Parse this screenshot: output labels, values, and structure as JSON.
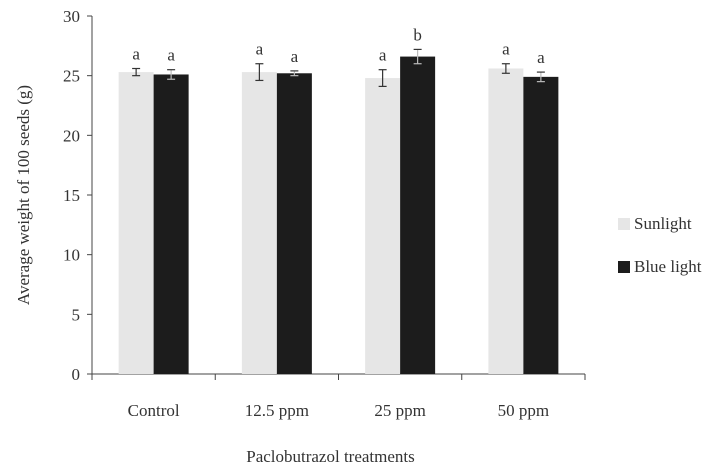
{
  "chart_data": {
    "type": "bar",
    "xlabel": "Paclobutrazol treatments",
    "ylabel": "Average weight of 100 seeds (g)",
    "ylim": [
      0,
      30
    ],
    "yticks": [
      0,
      5,
      10,
      15,
      20,
      25,
      30
    ],
    "categories": [
      "Control",
      "12.5 ppm",
      "25 ppm",
      "50 ppm"
    ],
    "series": [
      {
        "name": "Sunlight",
        "color": "#e6e6e6",
        "values": [
          25.3,
          25.3,
          24.8,
          25.6
        ],
        "errors": [
          0.3,
          0.7,
          0.7,
          0.4
        ],
        "labels": [
          "a",
          "a",
          "a",
          "a"
        ]
      },
      {
        "name": "Blue light",
        "color": "#1c1c1c",
        "values": [
          25.1,
          25.2,
          26.6,
          24.9
        ],
        "errors": [
          0.4,
          0.2,
          0.6,
          0.4
        ],
        "labels": [
          "a",
          "a",
          "b",
          "a"
        ]
      }
    ],
    "legend_position": "right",
    "grid": false
  }
}
